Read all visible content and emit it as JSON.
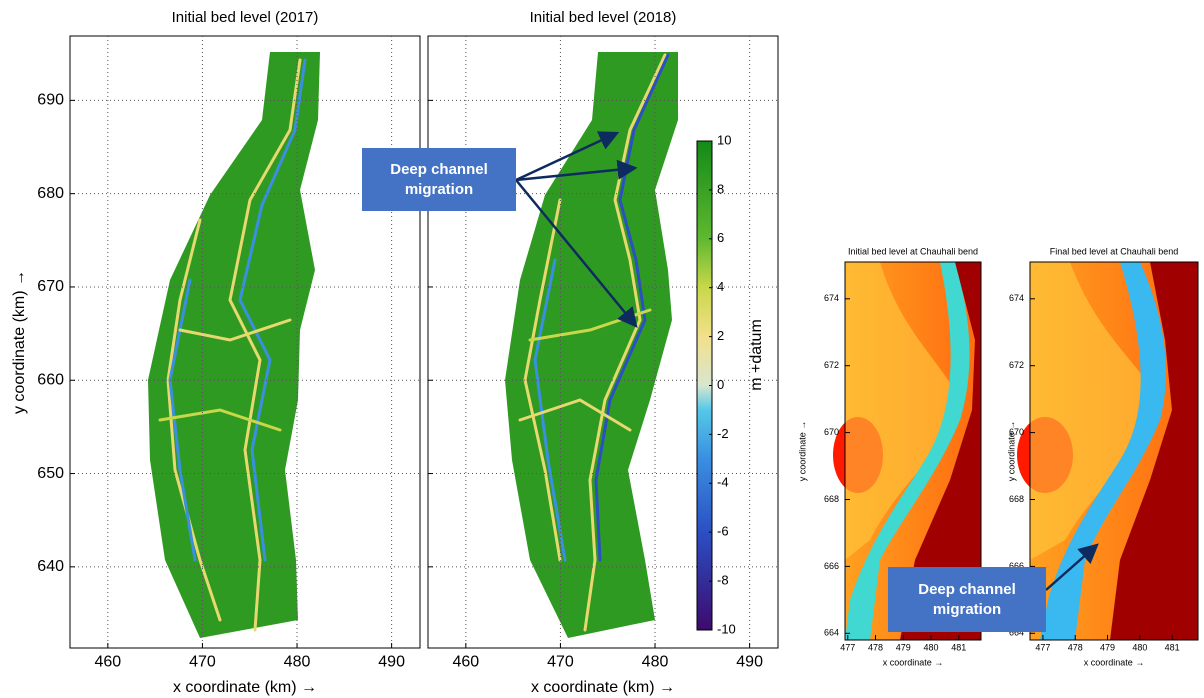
{
  "chart_data": [
    {
      "type": "map",
      "title": "Initial bed level (2017)",
      "xlabel": "x coordinate (km) →",
      "ylabel": "y coordinate (km) →",
      "xlim": [
        456,
        493
      ],
      "ylim": [
        631.3,
        696.9
      ],
      "xticks": [
        460,
        470,
        480,
        490
      ],
      "yticks": [
        640,
        650,
        660,
        670,
        680,
        690
      ],
      "grid": true
    },
    {
      "type": "map",
      "title": "Initial bed level (2018)",
      "xlabel": "x coordinate (km) →",
      "xlim": [
        456,
        493
      ],
      "ylim": [
        631.3,
        696.9
      ],
      "xticks": [
        460,
        470,
        480,
        490
      ],
      "yticks": [
        640,
        650,
        660,
        670,
        680,
        690
      ],
      "grid": true,
      "colorbar": {
        "label": "m +datum",
        "lim": [
          -10,
          10
        ],
        "ticks": [
          -10,
          -8,
          -6,
          -4,
          -2,
          0,
          2,
          4,
          6,
          8,
          10
        ]
      }
    },
    {
      "type": "map",
      "title": "Initial bed level at Chauhali bend",
      "xlabel": "x coordinate →",
      "ylabel": "y coordinate →",
      "xlim": [
        476.9,
        481.8
      ],
      "ylim": [
        663.8,
        675.1
      ],
      "xticks": [
        477,
        478,
        479,
        480,
        481
      ],
      "yticks": [
        664,
        666,
        668,
        670,
        672,
        674
      ],
      "grid": false
    },
    {
      "type": "map",
      "title": "Final bed level at Chauhali bend",
      "xlabel": "x coordinate →",
      "ylabel": "y coordinate →",
      "xlim": [
        476.6,
        481.8
      ],
      "ylim": [
        663.8,
        675.1
      ],
      "xticks": [
        477,
        478,
        479,
        480,
        481
      ],
      "yticks": [
        664,
        666,
        668,
        670,
        672,
        674
      ],
      "grid": false
    }
  ],
  "annotations": [
    {
      "text": "Deep channel migration"
    },
    {
      "text": "Deep channel migration"
    }
  ]
}
